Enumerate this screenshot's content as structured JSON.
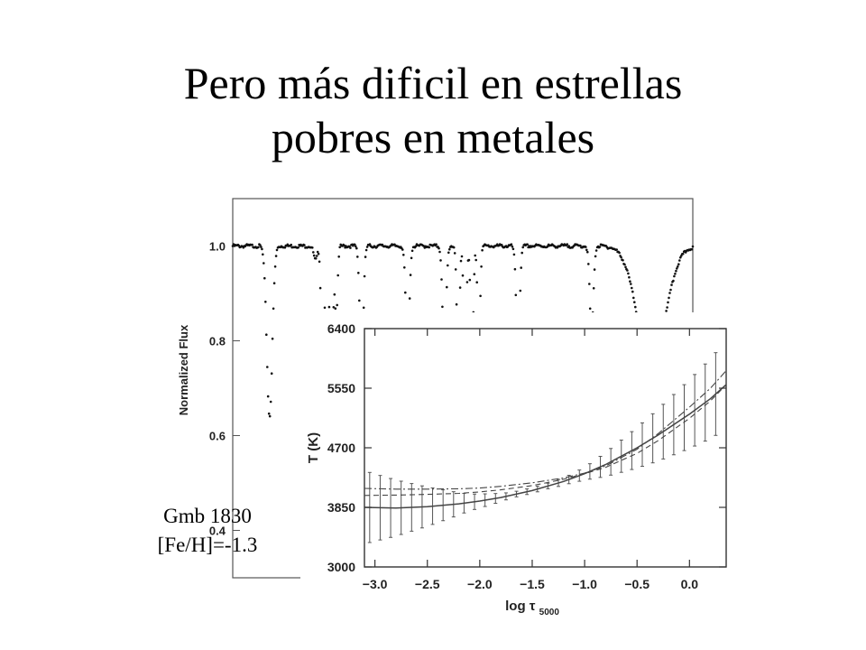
{
  "slide": {
    "title_line1": "Pero más dificil en estrellas",
    "title_line2": "pobres en metales",
    "star_name": "Gmb 1830",
    "metallicity": "[Fe/H]=-1.3"
  },
  "chart_data": [
    {
      "type": "line",
      "title": "",
      "xlabel": "",
      "ylabel": "Normalized Flux",
      "ylim": [
        0.3,
        1.1
      ],
      "yticks": [
        "0.4",
        "0.6",
        "0.8",
        "1.0"
      ],
      "xticks": [],
      "grid": false,
      "continuum": 1.0,
      "absorption_lines": [
        {
          "x": 0.08,
          "depth": 0.36,
          "width": 0.006
        },
        {
          "x": 0.18,
          "depth": 0.03,
          "width": 0.004
        },
        {
          "x": 0.195,
          "depth": 0.28,
          "width": 0.003
        },
        {
          "x": 0.205,
          "depth": 0.25,
          "width": 0.003
        },
        {
          "x": 0.215,
          "depth": 0.28,
          "width": 0.003
        },
        {
          "x": 0.225,
          "depth": 0.15,
          "width": 0.003
        },
        {
          "x": 0.28,
          "depth": 0.25,
          "width": 0.004
        },
        {
          "x": 0.38,
          "depth": 0.22,
          "width": 0.004
        },
        {
          "x": 0.46,
          "depth": 0.22,
          "width": 0.004
        },
        {
          "x": 0.49,
          "depth": 0.24,
          "width": 0.003
        },
        {
          "x": 0.505,
          "depth": 0.24,
          "width": 0.003
        },
        {
          "x": 0.52,
          "depth": 0.24,
          "width": 0.003
        },
        {
          "x": 0.535,
          "depth": 0.2,
          "width": 0.003
        },
        {
          "x": 0.62,
          "depth": 0.2,
          "width": 0.004
        },
        {
          "x": 0.78,
          "depth": 0.18,
          "width": 0.004
        },
        {
          "x": 0.91,
          "depth": 0.25,
          "width": 0.03
        }
      ]
    },
    {
      "type": "line",
      "title": "",
      "xlabel": "log τ",
      "xlabel_sub": "5000",
      "ylabel": "T (K)",
      "xlim": [
        -3.1,
        0.35
      ],
      "ylim": [
        3000,
        6400
      ],
      "xticks": [
        "-3.0",
        "-2.5",
        "-2.0",
        "-1.5",
        "-1.0",
        "-0.5",
        "0.0"
      ],
      "yticks": [
        "3000",
        "3850",
        "4700",
        "5550",
        "6400"
      ],
      "grid": false,
      "series": [
        {
          "style": "solid",
          "x": [
            -3.1,
            -2.8,
            -2.5,
            -2.2,
            -2.0,
            -1.8,
            -1.5,
            -1.2,
            -1.0,
            -0.8,
            -0.5,
            -0.3,
            0.0,
            0.2,
            0.35
          ],
          "y": [
            3850,
            3840,
            3860,
            3900,
            3940,
            3990,
            4090,
            4220,
            4330,
            4460,
            4700,
            4880,
            5180,
            5400,
            5600
          ]
        },
        {
          "style": "dashed",
          "x": [
            -3.1,
            -2.8,
            -2.5,
            -2.2,
            -2.0,
            -1.8,
            -1.5,
            -1.2,
            -1.0,
            -0.8,
            -0.5,
            -0.3,
            0.0,
            0.2,
            0.35
          ],
          "y": [
            4020,
            4025,
            4035,
            4050,
            4070,
            4100,
            4160,
            4250,
            4330,
            4420,
            4620,
            4800,
            5120,
            5370,
            5600
          ]
        },
        {
          "style": "dash-dot",
          "x": [
            -3.1,
            -2.8,
            -2.5,
            -2.2,
            -2.0,
            -1.8,
            -1.5,
            -1.2,
            -1.0,
            -0.8,
            -0.5,
            -0.3,
            0.0,
            0.2,
            0.35
          ],
          "y": [
            4120,
            4110,
            4110,
            4115,
            4125,
            4150,
            4200,
            4270,
            4340,
            4440,
            4680,
            4900,
            5280,
            5550,
            5800
          ]
        }
      ],
      "error_bars": {
        "x": [
          -3.05,
          -2.95,
          -2.85,
          -2.75,
          -2.65,
          -2.55,
          -2.45,
          -2.35,
          -2.25,
          -2.15,
          -2.05,
          -1.95,
          -1.85,
          -1.75,
          -1.65,
          -1.55,
          -1.45,
          -1.35,
          -1.25,
          -1.15,
          -1.05,
          -0.95,
          -0.85,
          -0.75,
          -0.65,
          -0.55,
          -0.45,
          -0.35,
          -0.25,
          -0.15,
          -0.05,
          0.05,
          0.15,
          0.25
        ],
        "err": [
          500,
          460,
          420,
          380,
          340,
          300,
          260,
          220,
          180,
          140,
          110,
          90,
          70,
          50,
          40,
          40,
          40,
          40,
          50,
          60,
          80,
          110,
          150,
          190,
          230,
          270,
          310,
          350,
          390,
          430,
          470,
          510,
          550,
          590
        ]
      }
    }
  ]
}
